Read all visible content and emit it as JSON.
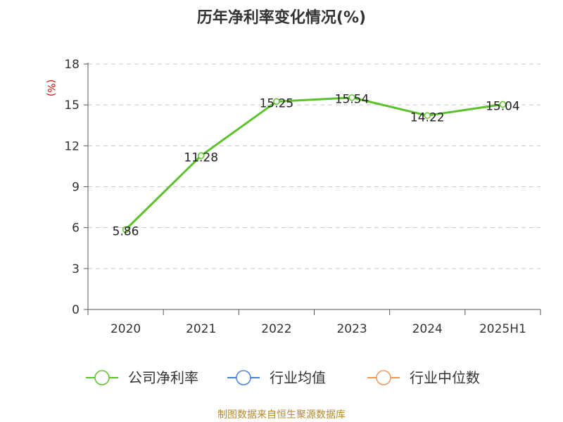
{
  "chart_data": {
    "type": "line",
    "title": "历年净利率变化情况(%)",
    "unit": "(%)",
    "categories": [
      "2020",
      "2021",
      "2022",
      "2023",
      "2024",
      "2025H1"
    ],
    "yticks": [
      "0",
      "3",
      "6",
      "9",
      "12",
      "15",
      "18"
    ],
    "ylim": [
      0,
      18
    ],
    "grid": true,
    "legend_position": "bottom",
    "series": [
      {
        "name": "公司净利率",
        "values": [
          5.86,
          11.28,
          15.25,
          15.54,
          14.22,
          15.04
        ],
        "labels": [
          "5.86",
          "11.28",
          "15.25",
          "15.54",
          "14.22",
          "15.04"
        ],
        "color": "#5cc22b"
      }
    ],
    "legend": [
      {
        "name": "公司净利率",
        "color": "#5cc22b"
      },
      {
        "name": "行业均值",
        "color": "#4a7fd8"
      },
      {
        "name": "行业中位数",
        "color": "#f0965a"
      }
    ]
  },
  "source": "制图数据来自恒生聚源数据库"
}
